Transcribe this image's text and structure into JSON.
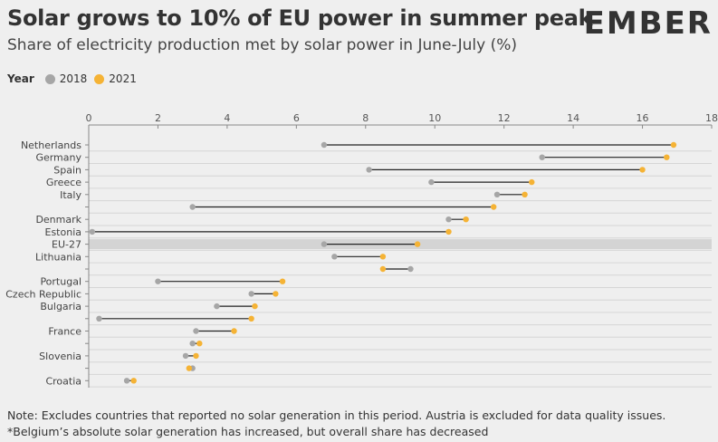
{
  "title": "Solar grows to 10% of EU power in summer peak",
  "subtitle": "Share of electricity production met by solar power in June-July (%)",
  "logo_text": "EMBER",
  "legend": {
    "title": "Year",
    "items": [
      {
        "label": "2018",
        "color": "#a6a6a6"
      },
      {
        "label": "2021",
        "color": "#f5b335"
      }
    ]
  },
  "notes": [
    "Note: Excludes countries that reported no solar generation in this period. Austria is excluded for data quality issues.",
    "*Belgium’s absolute solar generation has increased, but overall share has decreased"
  ],
  "chart_data": {
    "type": "dumbbell",
    "x_range": [
      0,
      18
    ],
    "x_ticks": [
      0,
      2,
      4,
      6,
      8,
      10,
      12,
      14,
      16,
      18
    ],
    "series": [
      {
        "name": "2018",
        "color": "#a6a6a6"
      },
      {
        "name": "2021",
        "color": "#f5b335"
      }
    ],
    "rows": [
      {
        "label": "Netherlands",
        "v2018": 6.8,
        "v2021": 16.9
      },
      {
        "label": "Germany",
        "v2018": 13.1,
        "v2021": 16.7
      },
      {
        "label": "Spain",
        "v2018": 8.1,
        "v2021": 16.0
      },
      {
        "label": "Greece",
        "v2018": 9.9,
        "v2021": 12.8
      },
      {
        "label": "Italy",
        "v2018": 11.8,
        "v2021": 12.6
      },
      {
        "label": "",
        "v2018": 3.0,
        "v2021": 11.7
      },
      {
        "label": "Denmark",
        "v2018": 10.4,
        "v2021": 10.9
      },
      {
        "label": "Estonia",
        "v2018": 0.1,
        "v2021": 10.4
      },
      {
        "label": "EU-27",
        "v2018": 6.8,
        "v2021": 9.5,
        "highlight": true
      },
      {
        "label": "Lithuania",
        "v2018": 7.1,
        "v2021": 8.5
      },
      {
        "label": "",
        "v2018": 9.3,
        "v2021": 8.5
      },
      {
        "label": "Portugal",
        "v2018": 2.0,
        "v2021": 5.6
      },
      {
        "label": "Czech Republic",
        "v2018": 4.7,
        "v2021": 5.4
      },
      {
        "label": "Bulgaria",
        "v2018": 3.7,
        "v2021": 4.8
      },
      {
        "label": "",
        "v2018": 0.3,
        "v2021": 4.7
      },
      {
        "label": "France",
        "v2018": 3.1,
        "v2021": 4.2
      },
      {
        "label": "",
        "v2018": 3.0,
        "v2021": 3.2
      },
      {
        "label": "Slovenia",
        "v2018": 2.8,
        "v2021": 3.1
      },
      {
        "label": "",
        "v2018": 3.0,
        "v2021": 2.9
      },
      {
        "label": "Croatia",
        "v2018": 1.1,
        "v2021": 1.3
      }
    ]
  }
}
